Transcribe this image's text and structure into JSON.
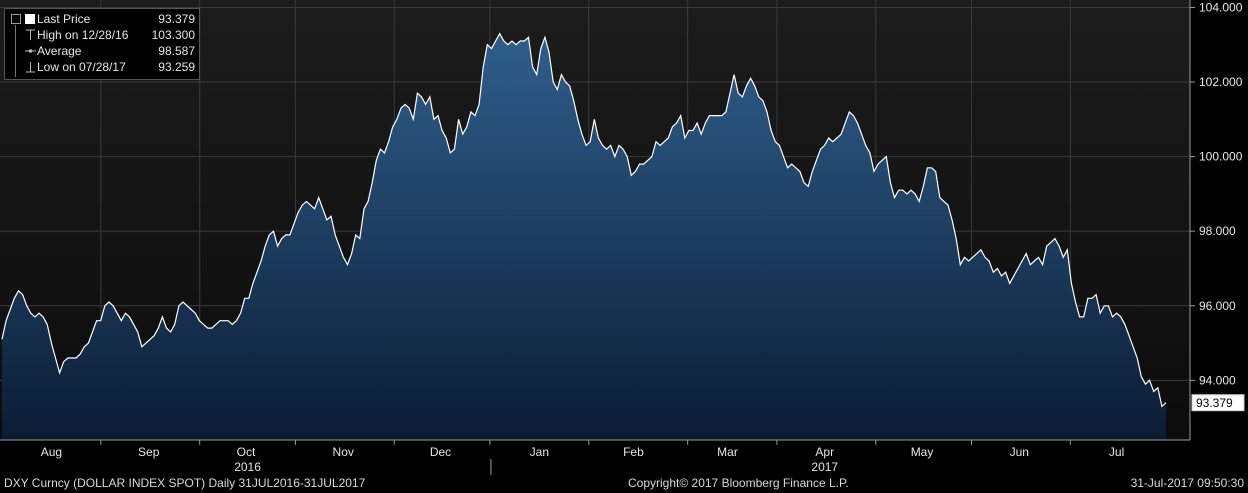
{
  "chart_data": {
    "type": "area",
    "series": [
      {
        "values": [
          95.1,
          95.6,
          95.9,
          96.2,
          96.4,
          96.3,
          96.0,
          95.8,
          95.7,
          95.8,
          95.7,
          95.5,
          95.0,
          94.6,
          94.2,
          94.5,
          94.6,
          94.6,
          94.6,
          94.7,
          94.9,
          95.0,
          95.3,
          95.6,
          95.6,
          96.0,
          96.1,
          96.0,
          95.8,
          95.6,
          95.8,
          95.7,
          95.5,
          95.3,
          94.9,
          95.0,
          95.1,
          95.2,
          95.4,
          95.7,
          95.4,
          95.3,
          95.5,
          96.0,
          96.1,
          96.0,
          95.9,
          95.8,
          95.6,
          95.5,
          95.4,
          95.4,
          95.5,
          95.6,
          95.6,
          95.6,
          95.5,
          95.6,
          95.8,
          96.2,
          96.2,
          96.6,
          96.9,
          97.2,
          97.6,
          97.9,
          98.0,
          97.6,
          97.8,
          97.9,
          97.9,
          98.2,
          98.5,
          98.7,
          98.8,
          98.7,
          98.6,
          98.9,
          98.6,
          98.3,
          98.4,
          97.9,
          97.6,
          97.3,
          97.1,
          97.4,
          97.9,
          97.8,
          98.6,
          98.8,
          99.3,
          99.9,
          100.2,
          100.1,
          100.4,
          100.8,
          101.0,
          101.3,
          101.4,
          101.3,
          101.0,
          101.7,
          101.6,
          101.4,
          101.6,
          101.0,
          101.1,
          100.7,
          100.5,
          100.1,
          100.2,
          101.0,
          100.6,
          100.8,
          101.2,
          101.1,
          101.4,
          102.4,
          103.0,
          102.9,
          103.1,
          103.3,
          103.1,
          103.0,
          103.1,
          103.0,
          103.1,
          103.1,
          103.2,
          102.4,
          102.2,
          102.9,
          103.2,
          102.8,
          102.0,
          101.8,
          102.2,
          102.0,
          101.9,
          101.5,
          101.0,
          100.6,
          100.3,
          100.4,
          101.0,
          100.5,
          100.3,
          100.2,
          100.3,
          100.0,
          100.3,
          100.2,
          100.0,
          99.5,
          99.6,
          99.8,
          99.8,
          99.9,
          100.0,
          100.4,
          100.3,
          100.4,
          100.5,
          100.8,
          100.9,
          101.1,
          100.5,
          100.7,
          100.7,
          100.9,
          100.6,
          100.9,
          101.1,
          101.1,
          101.1,
          101.1,
          101.2,
          101.7,
          102.2,
          101.7,
          101.6,
          101.9,
          102.1,
          101.9,
          101.6,
          101.5,
          101.2,
          100.7,
          100.4,
          100.3,
          100.0,
          99.7,
          99.8,
          99.7,
          99.6,
          99.3,
          99.2,
          99.6,
          99.9,
          100.2,
          100.3,
          100.5,
          100.4,
          100.5,
          100.6,
          100.9,
          101.2,
          101.1,
          100.9,
          100.6,
          100.3,
          100.1,
          99.6,
          99.8,
          99.9,
          100.0,
          99.3,
          98.9,
          99.1,
          99.1,
          99.0,
          99.1,
          99.0,
          98.8,
          99.2,
          99.7,
          99.7,
          99.6,
          98.9,
          98.8,
          98.7,
          98.3,
          97.8,
          97.1,
          97.3,
          97.2,
          97.3,
          97.4,
          97.5,
          97.3,
          97.2,
          96.9,
          97.0,
          96.8,
          96.9,
          96.6,
          96.8,
          97.0,
          97.2,
          97.4,
          97.1,
          97.2,
          97.3,
          97.1,
          97.6,
          97.7,
          97.8,
          97.6,
          97.3,
          97.5,
          96.6,
          96.1,
          95.7,
          95.7,
          96.2,
          96.2,
          96.3,
          95.8,
          96.0,
          96.0,
          95.7,
          95.8,
          95.7,
          95.5,
          95.2,
          94.9,
          94.6,
          94.1,
          93.9,
          94.0,
          93.7,
          93.8,
          93.3,
          93.4
        ],
        "color": "#ffffff",
        "fill_top": "#2f5e8c",
        "fill_bottom": "#0a1c33"
      }
    ],
    "ylim": [
      92.4,
      104.2
    ],
    "yticks": [
      "94.000",
      "96.000",
      "98.000",
      "100.000",
      "102.000",
      "104.000"
    ],
    "ytick_values": [
      94,
      96,
      98,
      100,
      102,
      104
    ],
    "grid": true,
    "months": [
      {
        "label": "Aug",
        "day": 15.5
      },
      {
        "label": "Sep",
        "day": 46
      },
      {
        "label": "Oct",
        "day": 76.5
      },
      {
        "label": "Nov",
        "day": 107
      },
      {
        "label": "Dec",
        "day": 137.5
      },
      {
        "label": "Jan",
        "day": 168.5
      },
      {
        "label": "Feb",
        "day": 198
      },
      {
        "label": "Mar",
        "day": 227.5
      },
      {
        "label": "Apr",
        "day": 258
      },
      {
        "label": "May",
        "day": 288.5
      },
      {
        "label": "Jun",
        "day": 319
      },
      {
        "label": "Jul",
        "day": 349.5
      }
    ],
    "month_separators": [
      31,
      62,
      92,
      123,
      153,
      184,
      215,
      243,
      274,
      304,
      335
    ],
    "year_labels": [
      {
        "label": "2016",
        "day": 77
      },
      {
        "label": "2017",
        "day": 258
      }
    ],
    "year_divider_day": 153,
    "total_days": 365,
    "last_value_label": "93.379"
  },
  "legend": {
    "last_price_label": "Last Price",
    "last_price_value": "93.379",
    "high_label": "High on 12/28/16",
    "high_value": "103.300",
    "average_label": "Average",
    "average_value": "98.587",
    "low_label": "Low on 07/28/17",
    "low_value": "93.259"
  },
  "footer": {
    "left": "DXY Curncy (DOLLAR INDEX SPOT)  Daily 31JUL2016-31JUL2017",
    "center": "Copyright© 2017 Bloomberg Finance L.P.",
    "right": "31-Jul-2017 09:50:30"
  },
  "colors": {
    "background": "#000000",
    "plot_bg_top": "#171717",
    "grid": "#3a3a3a",
    "line": "#ffffff"
  }
}
